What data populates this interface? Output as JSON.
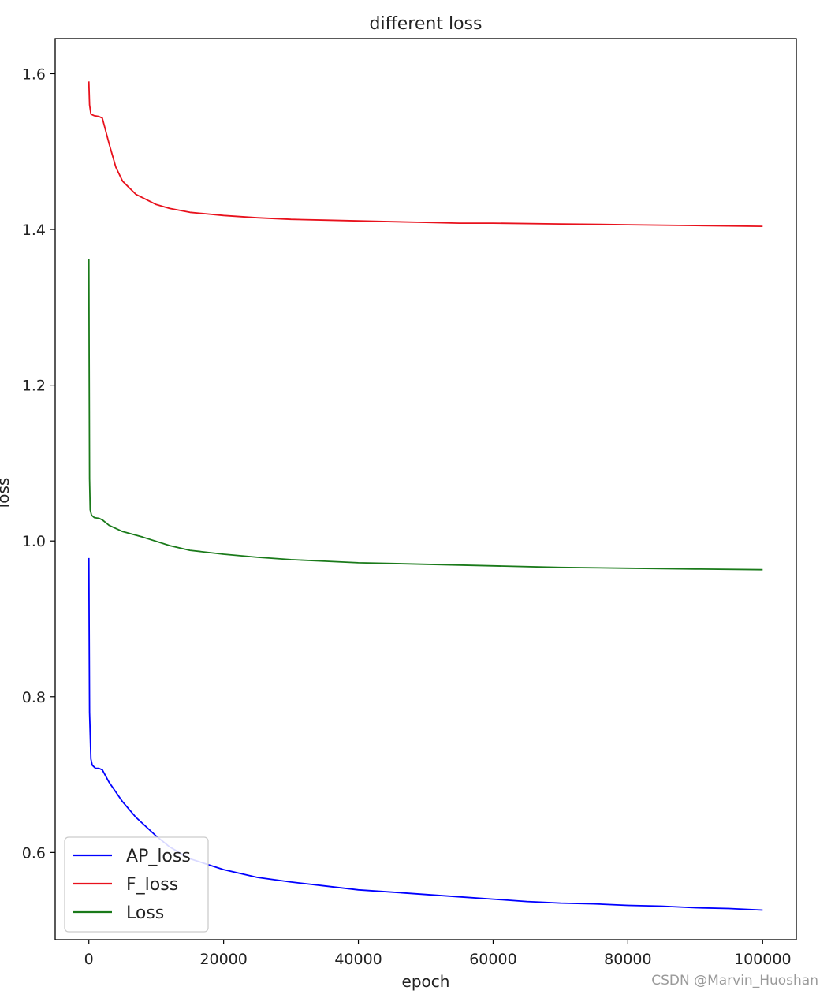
{
  "chart_data": {
    "type": "line",
    "title": "different loss",
    "xlabel": "epoch",
    "ylabel": "loss",
    "xlim": [
      -5000,
      105000
    ],
    "ylim": [
      0.488,
      1.645
    ],
    "xticks": [
      0,
      20000,
      40000,
      60000,
      80000,
      100000
    ],
    "xtick_labels": [
      "0",
      "20000",
      "40000",
      "60000",
      "80000",
      "100000"
    ],
    "yticks": [
      0.6,
      0.8,
      1.0,
      1.2,
      1.4,
      1.6
    ],
    "ytick_labels": [
      "0.6",
      "0.8",
      "1.0",
      "1.2",
      "1.4",
      "1.6"
    ],
    "grid": false,
    "legend_position": "lower-left",
    "series": [
      {
        "name": "AP_loss",
        "color": "#0000ff",
        "x": [
          0,
          100,
          300,
          500,
          1000,
          1500,
          2000,
          3000,
          5000,
          7000,
          10000,
          12000,
          15000,
          20000,
          25000,
          30000,
          35000,
          40000,
          45000,
          50000,
          55000,
          60000,
          65000,
          70000,
          75000,
          80000,
          85000,
          90000,
          95000,
          100000
        ],
        "values": [
          0.978,
          0.78,
          0.72,
          0.712,
          0.708,
          0.708,
          0.706,
          0.69,
          0.665,
          0.645,
          0.621,
          0.607,
          0.592,
          0.578,
          0.568,
          0.562,
          0.557,
          0.552,
          0.549,
          0.546,
          0.543,
          0.54,
          0.537,
          0.535,
          0.534,
          0.532,
          0.531,
          0.529,
          0.528,
          0.526
        ]
      },
      {
        "name": "F_loss",
        "color": "#e8111c",
        "x": [
          0,
          100,
          300,
          800,
          1500,
          2000,
          3000,
          4000,
          5000,
          7000,
          10000,
          12000,
          15000,
          20000,
          25000,
          30000,
          35000,
          40000,
          45000,
          50000,
          55000,
          60000,
          70000,
          80000,
          90000,
          100000
        ],
        "values": [
          1.59,
          1.56,
          1.548,
          1.546,
          1.545,
          1.543,
          1.51,
          1.48,
          1.462,
          1.445,
          1.432,
          1.427,
          1.422,
          1.418,
          1.415,
          1.413,
          1.412,
          1.411,
          1.41,
          1.409,
          1.408,
          1.408,
          1.407,
          1.406,
          1.405,
          1.404
        ]
      },
      {
        "name": "Loss",
        "color": "#1a7a1a",
        "x": [
          0,
          100,
          200,
          400,
          800,
          1500,
          2000,
          3000,
          5000,
          8000,
          12000,
          15000,
          20000,
          25000,
          30000,
          35000,
          40000,
          45000,
          50000,
          55000,
          60000,
          70000,
          80000,
          90000,
          100000
        ],
        "values": [
          1.362,
          1.08,
          1.04,
          1.033,
          1.03,
          1.029,
          1.027,
          1.02,
          1.012,
          1.005,
          0.994,
          0.988,
          0.983,
          0.979,
          0.976,
          0.974,
          0.972,
          0.971,
          0.97,
          0.969,
          0.968,
          0.966,
          0.965,
          0.964,
          0.963
        ]
      }
    ]
  },
  "watermark": "CSDN @Marvin_Huoshan"
}
